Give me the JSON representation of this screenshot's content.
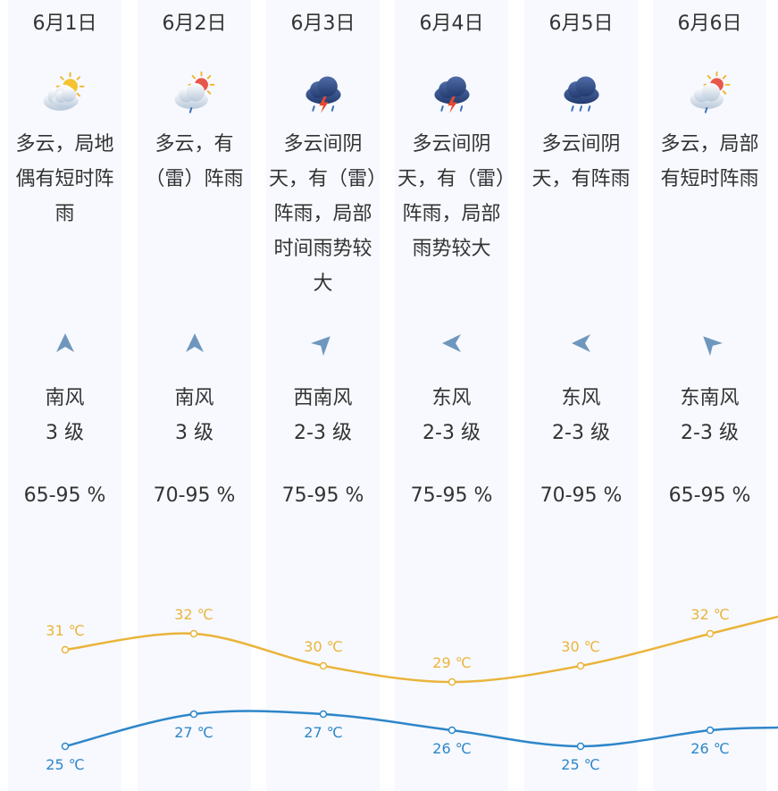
{
  "days": [
    {
      "date": "6月1日",
      "icon": "partly-cloudy-sun-icon",
      "desc": "多云，局地偶有短时阵雨",
      "wind_icon": "wind-south-arrow-icon",
      "wind_deg": 0,
      "wind_dir": "南风",
      "wind_level": "3 级",
      "humidity": "65-95 %"
    },
    {
      "date": "6月2日",
      "icon": "cloud-sun-rain-icon",
      "desc": "多云，有（雷）阵雨",
      "wind_icon": "wind-south-arrow-icon",
      "wind_deg": 0,
      "wind_dir": "南风",
      "wind_level": "3 级",
      "humidity": "70-95 %"
    },
    {
      "date": "6月3日",
      "icon": "thunderstorm-icon",
      "desc": "多云间阴天，有（雷）阵雨，局部时间雨势较大",
      "wind_icon": "wind-southwest-arrow-icon",
      "wind_deg": 45,
      "wind_dir": "西南风",
      "wind_level": "2-3 级",
      "humidity": "75-95 %"
    },
    {
      "date": "6月4日",
      "icon": "thunderstorm-icon",
      "desc": "多云间阴天，有（雷）阵雨，局部雨势较大",
      "wind_icon": "wind-east-arrow-icon",
      "wind_deg": -90,
      "wind_dir": "东风",
      "wind_level": "2-3 级",
      "humidity": "75-95 %"
    },
    {
      "date": "6月5日",
      "icon": "dark-cloud-rain-icon",
      "desc": "多云间阴天，有阵雨",
      "wind_icon": "wind-east-arrow-icon",
      "wind_deg": -90,
      "wind_dir": "东风",
      "wind_level": "2-3 级",
      "humidity": "70-95 %"
    },
    {
      "date": "6月6日",
      "icon": "cloud-sun-rain-icon",
      "desc": "多云，局部有短时阵雨",
      "wind_icon": "wind-southeast-arrow-icon",
      "wind_deg": -45,
      "wind_dir": "东南风",
      "wind_level": "2-3 级",
      "humidity": "65-95 %"
    }
  ],
  "temps": {
    "high": [
      31,
      32,
      30,
      29,
      30,
      32
    ],
    "low": [
      25,
      27,
      27,
      26,
      25,
      26
    ],
    "high_labels": [
      "31 ℃",
      "32 ℃",
      "30 ℃",
      "29 ℃",
      "30 ℃",
      "32 ℃"
    ],
    "low_labels": [
      "25 ℃",
      "27 ℃",
      "27 ℃",
      "26 ℃",
      "25 ℃",
      "26 ℃"
    ],
    "high_color": "#eab43a",
    "low_color": "#2e86c8"
  },
  "colors": {
    "column_bg": "#f7f9fe",
    "text": "#333333",
    "arrow": "#6f97bd"
  }
}
